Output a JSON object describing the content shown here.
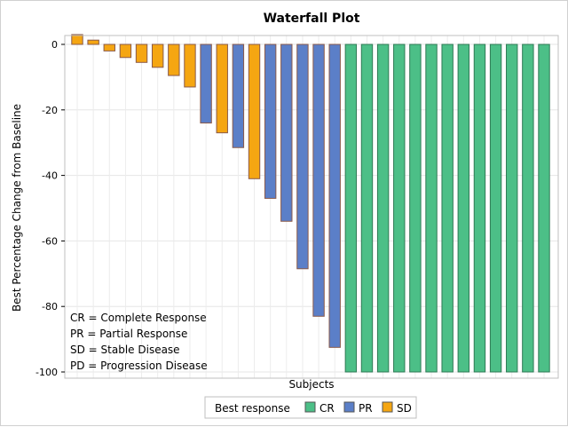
{
  "chart_data": {
    "type": "bar",
    "title": "Waterfall Plot",
    "xlabel": "Subjects",
    "ylabel": "Best Percentage Change from Baseline",
    "ylim": [
      -100,
      3
    ],
    "yticks": [
      0,
      -20,
      -40,
      -60,
      -80,
      -100
    ],
    "ytick_labels": [
      "0",
      "-20",
      "-40",
      "-60",
      "-80",
      "-100"
    ],
    "grid": true,
    "legend_position": "bottom",
    "legend_title": "Best response",
    "colors": {
      "CR": "#4cbf87",
      "PR": "#5b7fc8",
      "SD": "#f5a612"
    },
    "series": [
      {
        "name": "CR"
      },
      {
        "name": "PR"
      },
      {
        "name": "SD"
      }
    ],
    "values": [
      3,
      1.3,
      -2,
      -4,
      -5.5,
      -7,
      -9.5,
      -13,
      -24,
      -27,
      -31.5,
      -41,
      -47,
      -54,
      -68.5,
      -83,
      -92.5,
      -100,
      -100,
      -100,
      -100,
      -100,
      -100,
      -100,
      -100,
      -100,
      -100,
      -100,
      -100,
      -100
    ],
    "groups": [
      "SD",
      "SD",
      "SD",
      "SD",
      "SD",
      "SD",
      "SD",
      "SD",
      "PR",
      "SD",
      "PR",
      "SD",
      "PR",
      "PR",
      "PR",
      "PR",
      "PR",
      "CR",
      "CR",
      "CR",
      "CR",
      "CR",
      "CR",
      "CR",
      "CR",
      "CR",
      "CR",
      "CR",
      "CR",
      "CR"
    ],
    "annotations": [
      "CR = Complete Response",
      "PR = Partial Response",
      "SD = Stable Disease",
      "PD = Progression Disease"
    ]
  }
}
